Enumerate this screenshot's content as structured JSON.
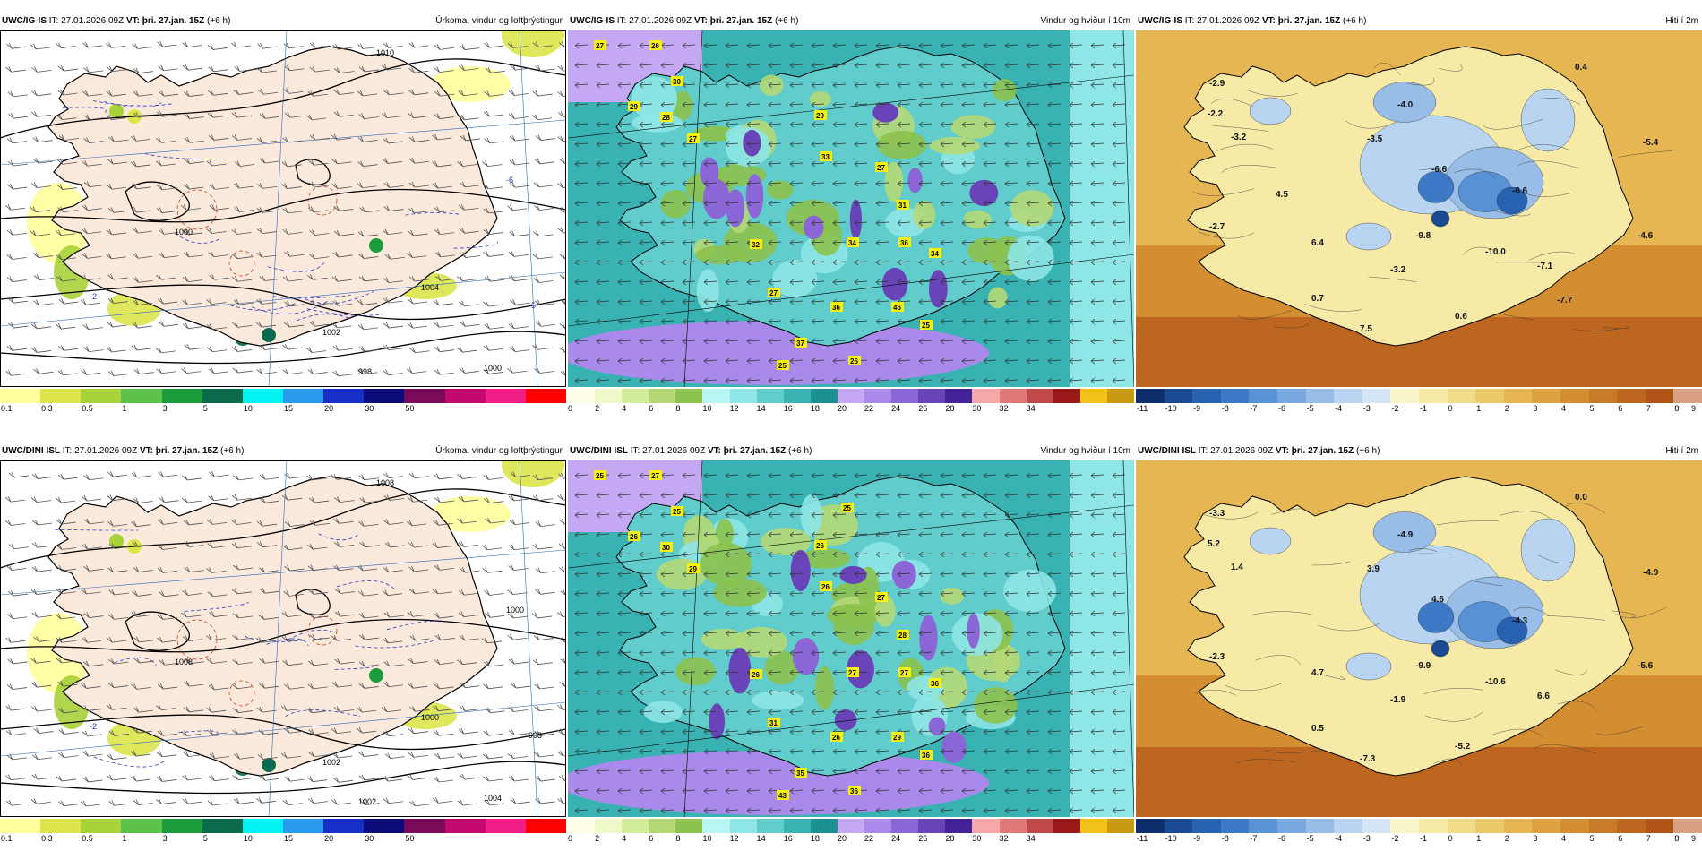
{
  "panels": [
    {
      "id": "p1",
      "kind": "precip",
      "model": "UWC/IG-IS",
      "it_label": "IT:",
      "it": "27.01.2026 09Z",
      "vt_label": "VT:",
      "vt": "þri. 27.jan. 15Z",
      "lead": "(+6 h)",
      "title": "Úrkoma, vindur og loftþrýstingur",
      "colorbar": {
        "colors": [
          "#ffff9c",
          "#dce64b",
          "#a8d23a",
          "#5cc24a",
          "#1a9c3c",
          "#0a6a4a",
          "#00f2f2",
          "#2a9aee",
          "#1830c8",
          "#0a0a78",
          "#7a0a5a",
          "#c2086e",
          "#f21e88",
          "#ff0000"
        ],
        "ticks": [
          "0.1",
          "0.3",
          "0.5",
          "1",
          "3",
          "5",
          "10",
          "15",
          "20",
          "30",
          "50"
        ]
      },
      "labels": [
        {
          "text": "1010"
        },
        {
          "text": "1000"
        },
        {
          "text": "1004"
        },
        {
          "text": "1002"
        },
        {
          "text": "1000"
        },
        {
          "text": "998"
        },
        {
          "text": "-6"
        },
        {
          "text": "-5"
        },
        {
          "text": "-2"
        }
      ]
    },
    {
      "id": "p2",
      "kind": "wind",
      "model": "UWC/IG-IS",
      "it_label": "IT:",
      "it": "27.01.2026 09Z",
      "vt_label": "VT:",
      "vt": "þri. 27.jan. 15Z",
      "lead": "(+6 h)",
      "title": "Vindur og hviður í 10m",
      "colorbar": {
        "colors": [
          "#ffffe8",
          "#eef8c8",
          "#d2ec9c",
          "#b4d876",
          "#8cc24e",
          "#b8f6f6",
          "#8ee6e6",
          "#60cccc",
          "#38b2b2",
          "#1a9090",
          "#c4a8f4",
          "#a98aea",
          "#8a66d6",
          "#6844b8",
          "#44229a",
          "#f6a8a8",
          "#e07878",
          "#c04848",
          "#9a1a1a",
          "#f2c21a",
          "#c89a10"
        ],
        "ticks": [
          "0",
          "2",
          "4",
          "6",
          "8",
          "10",
          "12",
          "14",
          "16",
          "18",
          "20",
          "22",
          "24",
          "26",
          "28",
          "30",
          "32",
          "34"
        ]
      },
      "gusts": [
        "27",
        "26",
        "30",
        "29",
        "28",
        "27",
        "29",
        "33",
        "27",
        "31",
        "36",
        "34",
        "32",
        "36",
        "27",
        "37",
        "25",
        "46",
        "34",
        "26",
        "25"
      ]
    },
    {
      "id": "p3",
      "kind": "temp",
      "model": "UWC/IG-IS",
      "it_label": "IT:",
      "it": "27.01.2026 09Z",
      "vt_label": "VT:",
      "vt": "þri. 27.jan. 15Z",
      "lead": "(+6 h)",
      "title": "Hiti í 2m",
      "colorbar": {
        "colors": [
          "#0d2f6e",
          "#1a4a94",
          "#2a62b2",
          "#3c7ac8",
          "#5892d4",
          "#78a8de",
          "#98bee8",
          "#b8d4f0",
          "#d4e6f6",
          "#f8f6c8",
          "#f6eaa6",
          "#f2dc8a",
          "#ecca6c",
          "#e6b652",
          "#dea240",
          "#d48e32",
          "#c87a28",
          "#bc6620",
          "#b05418",
          "#d8a080"
        ],
        "ticks": [
          "-11",
          "-10",
          "-9",
          "-8",
          "-7",
          "-6",
          "-5",
          "-4",
          "-3",
          "-2",
          "-1",
          "0",
          "1",
          "2",
          "3",
          "4",
          "5",
          "6",
          "7",
          "8",
          "9"
        ]
      },
      "temps": [
        "0.4",
        "-2.9",
        "-2.2",
        "-3.2",
        "-4.0",
        "-3.5",
        "-5.4",
        "-6.6",
        "-6.6",
        "-2.7",
        "6.4",
        "-9.8",
        "-10.0",
        "-4.6",
        "-7.1",
        "-3.2",
        "0.7",
        "7.5",
        "0.6",
        "-7.7",
        "4.5"
      ]
    },
    {
      "id": "p4",
      "kind": "precip",
      "model": "UWC/DINI ISL",
      "it_label": "IT:",
      "it": "27.01.2026 09Z",
      "vt_label": "VT:",
      "vt": "þri. 27.jan. 15Z",
      "lead": "(+6 h)",
      "title": "Úrkoma, vindur og loftþrýstingur",
      "colorbar": {
        "colors": [
          "#ffff9c",
          "#dce64b",
          "#a8d23a",
          "#5cc24a",
          "#1a9c3c",
          "#0a6a4a",
          "#00f2f2",
          "#2a9aee",
          "#1830c8",
          "#0a0a78",
          "#7a0a5a",
          "#c2086e",
          "#f21e88",
          "#ff0000"
        ],
        "ticks": [
          "0.1",
          "0.3",
          "0.5",
          "1",
          "3",
          "5",
          "10",
          "15",
          "20",
          "30",
          "50"
        ]
      },
      "labels": [
        {
          "text": "1008"
        },
        {
          "text": "1008"
        },
        {
          "text": "1000"
        },
        {
          "text": "1002"
        },
        {
          "text": "1004"
        },
        {
          "text": "1002"
        },
        {
          "text": "1000"
        },
        {
          "text": "998"
        },
        {
          "text": "-2"
        }
      ]
    },
    {
      "id": "p5",
      "kind": "wind",
      "model": "UWC/DINI ISL",
      "it_label": "IT:",
      "it": "27.01.2026 09Z",
      "vt_label": "VT:",
      "vt": "þri. 27.jan. 15Z",
      "lead": "(+6 h)",
      "title": "Vindur og hviður í 10m",
      "colorbar": {
        "colors": [
          "#ffffe8",
          "#eef8c8",
          "#d2ec9c",
          "#b4d876",
          "#8cc24e",
          "#b8f6f6",
          "#8ee6e6",
          "#60cccc",
          "#38b2b2",
          "#1a9090",
          "#c4a8f4",
          "#a98aea",
          "#8a66d6",
          "#6844b8",
          "#44229a",
          "#f6a8a8",
          "#e07878",
          "#c04848",
          "#9a1a1a",
          "#f2c21a",
          "#c89a10"
        ],
        "ticks": [
          "0",
          "2",
          "4",
          "6",
          "8",
          "10",
          "12",
          "14",
          "16",
          "18",
          "20",
          "22",
          "24",
          "26",
          "28",
          "30",
          "32",
          "34"
        ]
      },
      "gusts": [
        "25",
        "27",
        "25",
        "26",
        "30",
        "29",
        "26",
        "26",
        "27",
        "28",
        "27",
        "27",
        "26",
        "26",
        "31",
        "35",
        "36",
        "29",
        "36",
        "36",
        "43",
        "25"
      ]
    },
    {
      "id": "p6",
      "kind": "temp",
      "model": "UWC/DINI ISL",
      "it_label": "IT:",
      "it": "27.01.2026 09Z",
      "vt_label": "VT:",
      "vt": "þri. 27.jan. 15Z",
      "lead": "(+6 h)",
      "title": "Hiti í 2m",
      "colorbar": {
        "colors": [
          "#0d2f6e",
          "#1a4a94",
          "#2a62b2",
          "#3c7ac8",
          "#5892d4",
          "#78a8de",
          "#98bee8",
          "#b8d4f0",
          "#d4e6f6",
          "#f8f6c8",
          "#f6eaa6",
          "#f2dc8a",
          "#ecca6c",
          "#e6b652",
          "#dea240",
          "#d48e32",
          "#c87a28",
          "#bc6620",
          "#b05418",
          "#d8a080"
        ],
        "ticks": [
          "-11",
          "-10",
          "-9",
          "-8",
          "-7",
          "-6",
          "-5",
          "-4",
          "-3",
          "-2",
          "-1",
          "0",
          "1",
          "2",
          "3",
          "4",
          "5",
          "6",
          "7",
          "8",
          "9"
        ]
      },
      "temps": [
        "0.0",
        "-3.3",
        "5.2",
        "1.4",
        "-4.9",
        "3.9",
        "-4.9",
        "4.6",
        "-4.3",
        "-2.3",
        "4.7",
        "-9.9",
        "-10.6",
        "-5.6",
        "6.6",
        "-1.9",
        "0.5",
        "-7.3",
        "-5.2"
      ]
    }
  ]
}
